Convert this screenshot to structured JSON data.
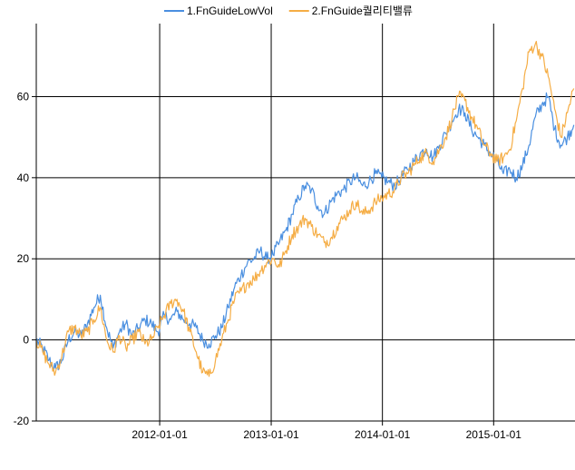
{
  "chart_data": {
    "type": "line",
    "title": "",
    "xlabel": "",
    "ylabel": "",
    "x_tick_labels": [
      "2012-01-01",
      "2013-01-01",
      "2014-01-01",
      "2015-01-01"
    ],
    "x_ticks": [
      "2012-01-01",
      "2013-01-01",
      "2014-01-01",
      "2015-01-01"
    ],
    "xlim": [
      "2010-11-22",
      "2015-09-25"
    ],
    "ylim": [
      -20,
      78
    ],
    "y_ticks": [
      -20,
      0,
      20,
      40,
      60
    ],
    "grid": true,
    "legend": "top-center",
    "x": [
      "2010-11-22",
      "2010-12-13",
      "2011-01-03",
      "2011-01-24",
      "2011-02-14",
      "2011-03-07",
      "2011-03-28",
      "2011-04-18",
      "2011-05-09",
      "2011-05-30",
      "2011-06-20",
      "2011-07-11",
      "2011-08-01",
      "2011-08-22",
      "2011-09-12",
      "2011-10-03",
      "2011-10-24",
      "2011-11-14",
      "2011-12-05",
      "2011-12-26",
      "2012-01-16",
      "2012-02-06",
      "2012-02-27",
      "2012-03-19",
      "2012-04-09",
      "2012-04-30",
      "2012-05-21",
      "2012-06-11",
      "2012-07-02",
      "2012-07-23",
      "2012-08-13",
      "2012-09-03",
      "2012-09-24",
      "2012-10-15",
      "2012-11-05",
      "2012-11-26",
      "2012-12-17",
      "2013-01-07",
      "2013-01-28",
      "2013-02-18",
      "2013-03-11",
      "2013-04-01",
      "2013-04-22",
      "2013-05-13",
      "2013-06-03",
      "2013-06-24",
      "2013-07-15",
      "2013-08-05",
      "2013-08-26",
      "2013-09-16",
      "2013-10-07",
      "2013-10-28",
      "2013-11-18",
      "2013-12-09",
      "2013-12-30",
      "2014-01-20",
      "2014-02-10",
      "2014-03-03",
      "2014-03-24",
      "2014-04-14",
      "2014-05-05",
      "2014-05-26",
      "2014-06-16",
      "2014-07-07",
      "2014-07-28",
      "2014-08-18",
      "2014-09-08",
      "2014-09-29",
      "2014-10-20",
      "2014-11-10",
      "2014-12-01",
      "2014-12-22",
      "2015-01-12",
      "2015-02-02",
      "2015-02-23",
      "2015-03-16",
      "2015-04-06",
      "2015-04-27",
      "2015-05-18",
      "2015-06-08",
      "2015-06-29",
      "2015-07-20",
      "2015-08-10",
      "2015-08-31",
      "2015-09-21"
    ],
    "series": [
      {
        "name": "1.FnGuideLowVol",
        "color": "#4a8fe0",
        "values": [
          0,
          -2,
          -5,
          -7,
          -5,
          0,
          2,
          1,
          4,
          8,
          11,
          3,
          -2,
          2,
          4,
          1,
          3,
          5,
          4,
          2,
          6,
          5,
          7,
          5,
          4,
          3,
          0,
          -1,
          1,
          3,
          8,
          13,
          16,
          19,
          20,
          22,
          20,
          21,
          24,
          27,
          31,
          35,
          38,
          37,
          33,
          31,
          34,
          36,
          37,
          39,
          40,
          38,
          39,
          41,
          40,
          39,
          38,
          40,
          42,
          44,
          46,
          47,
          45,
          48,
          51,
          54,
          57,
          56,
          52,
          50,
          48,
          46,
          44,
          41,
          42,
          40,
          43,
          48,
          55,
          58,
          60,
          52,
          48,
          50,
          53
        ]
      },
      {
        "name": "2.FnGuide퀄리티밸류",
        "color": "#f5ad45",
        "values": [
          0,
          -3,
          -6,
          -8,
          -4,
          2,
          3,
          1,
          2,
          5,
          8,
          0,
          -3,
          1,
          -2,
          0,
          2,
          -1,
          0,
          3,
          6,
          9,
          10,
          7,
          2,
          -3,
          -8,
          -9,
          -5,
          0,
          5,
          10,
          12,
          14,
          15,
          17,
          19,
          20,
          18,
          22,
          26,
          28,
          30,
          28,
          26,
          24,
          25,
          28,
          30,
          32,
          34,
          31,
          32,
          34,
          35,
          36,
          37,
          40,
          41,
          43,
          45,
          46,
          44,
          47,
          50,
          55,
          60,
          59,
          55,
          52,
          48,
          46,
          44,
          45,
          47,
          54,
          62,
          71,
          73,
          70,
          65,
          57,
          50,
          56,
          62
        ]
      }
    ]
  }
}
